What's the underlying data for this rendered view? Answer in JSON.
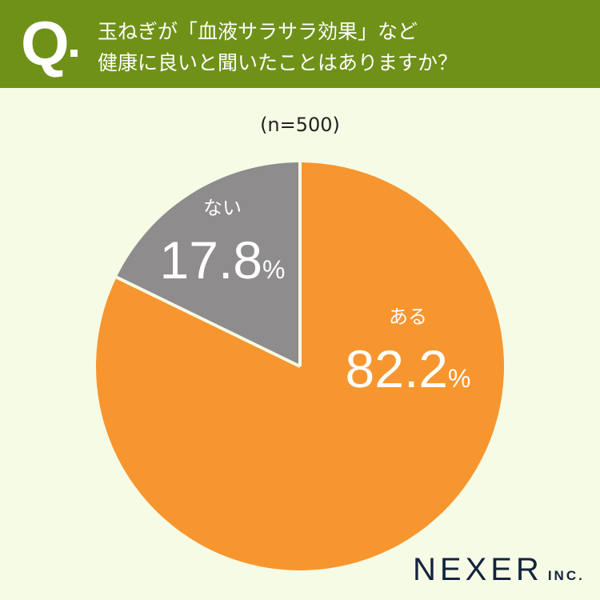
{
  "header": {
    "q_mark": "Q",
    "title_line1": "玉ねぎが「血液サラサラ効果」など",
    "title_line2": "健康に良いと聞いたことはありますか？"
  },
  "chart_data": {
    "type": "pie",
    "title": "",
    "note": "(n=500)",
    "categories": [
      "ある",
      "ない"
    ],
    "values": [
      82.2,
      17.8
    ],
    "labels": [
      "82.2",
      "17.8"
    ],
    "unit": "%",
    "colors": [
      "#F7962F",
      "#8E8C8D"
    ],
    "start": "top",
    "direction": "clockwise"
  },
  "logo": {
    "name": "NEXER",
    "suffix": "INC."
  }
}
